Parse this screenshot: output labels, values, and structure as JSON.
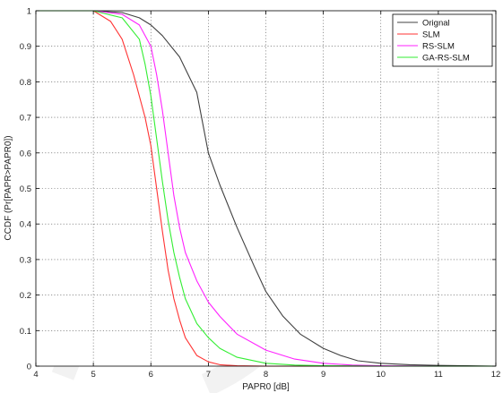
{
  "chart_data": {
    "type": "line",
    "title": "",
    "xlabel": "PAPR0 [dB]",
    "ylabel": "CCDF (Pr[PAPR>PAPR0])",
    "xlim": [
      4,
      12
    ],
    "ylim": [
      0,
      1
    ],
    "xticks": [
      4,
      5,
      6,
      7,
      8,
      9,
      10,
      11,
      12
    ],
    "xtick_labels": [
      "4",
      "5",
      "6",
      "7",
      "8",
      "9",
      "10",
      "11",
      "12"
    ],
    "yticks": [
      0,
      0.1,
      0.2,
      0.3,
      0.4,
      0.5,
      0.6,
      0.7,
      0.8,
      0.9,
      1
    ],
    "ytick_labels": [
      "0",
      "0.1",
      "0.2",
      "0.3",
      "0.4",
      "0.5",
      "0.6",
      "0.7",
      "0.8",
      "0.9",
      "1"
    ],
    "grid": true,
    "legend_position": "top-right",
    "series": [
      {
        "name": "Orignal",
        "color": "#404040",
        "x": [
          4,
          5,
          5.5,
          5.8,
          6,
          6.2,
          6.5,
          6.8,
          7,
          7.2,
          7.5,
          7.8,
          8,
          8.3,
          8.6,
          9,
          9.3,
          9.6,
          10,
          10.5,
          11,
          11.5,
          12
        ],
        "y": [
          1,
          1,
          0.995,
          0.98,
          0.96,
          0.93,
          0.87,
          0.77,
          0.6,
          0.51,
          0.39,
          0.28,
          0.21,
          0.14,
          0.09,
          0.05,
          0.03,
          0.015,
          0.008,
          0.004,
          0.002,
          0.001,
          0
        ]
      },
      {
        "name": "SLM",
        "color": "#ff3333",
        "x": [
          4,
          5,
          5.3,
          5.5,
          5.7,
          5.9,
          6,
          6.1,
          6.2,
          6.3,
          6.4,
          6.5,
          6.6,
          6.8,
          7,
          7.2,
          7.5,
          8,
          9,
          12
        ],
        "y": [
          1,
          1,
          0.97,
          0.92,
          0.82,
          0.7,
          0.62,
          0.5,
          0.38,
          0.27,
          0.19,
          0.13,
          0.08,
          0.03,
          0.012,
          0.004,
          0.001,
          0,
          0,
          0
        ]
      },
      {
        "name": "RS-SLM",
        "color": "#ff22ff",
        "x": [
          4,
          5,
          5.5,
          5.8,
          6,
          6.1,
          6.2,
          6.3,
          6.4,
          6.5,
          6.6,
          6.8,
          7,
          7.2,
          7.5,
          8,
          8.5,
          9,
          9.5,
          10,
          11,
          12
        ],
        "y": [
          1,
          1,
          0.99,
          0.96,
          0.9,
          0.82,
          0.72,
          0.6,
          0.48,
          0.39,
          0.32,
          0.24,
          0.18,
          0.14,
          0.09,
          0.045,
          0.02,
          0.008,
          0.003,
          0.001,
          0,
          0
        ]
      },
      {
        "name": "GA-RS-SLM",
        "color": "#33ee33",
        "x": [
          4,
          5,
          5.5,
          5.8,
          5.9,
          6,
          6.1,
          6.2,
          6.3,
          6.4,
          6.5,
          6.6,
          6.8,
          7,
          7.2,
          7.5,
          8,
          8.5,
          9,
          10,
          12
        ],
        "y": [
          1,
          1,
          0.98,
          0.92,
          0.85,
          0.76,
          0.64,
          0.52,
          0.41,
          0.32,
          0.25,
          0.19,
          0.12,
          0.08,
          0.05,
          0.025,
          0.008,
          0.003,
          0.001,
          0,
          0
        ]
      }
    ]
  }
}
